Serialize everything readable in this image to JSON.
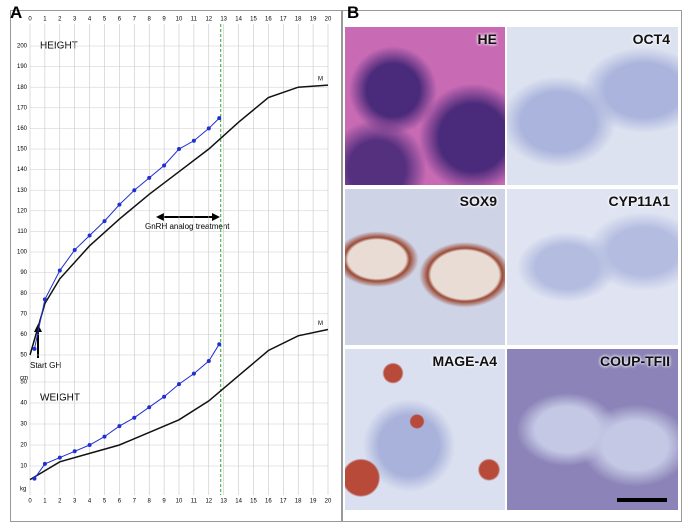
{
  "panel_a": {
    "letter": "A",
    "chart_data": {
      "type": "line",
      "height_label": "HEIGHT",
      "weight_label": "WEIGHT",
      "treatment_label": "GnRH analog treatment",
      "start_label": "Start GH",
      "y_unit": "cm",
      "y2_unit": "kg",
      "xlim": [
        0,
        20
      ],
      "xticks": [
        0,
        1,
        2,
        3,
        4,
        5,
        6,
        7,
        8,
        9,
        10,
        11,
        12,
        13,
        14,
        15,
        16,
        17,
        18,
        19,
        20
      ],
      "ylim": [
        50,
        200
      ],
      "yticks": [
        50,
        60,
        70,
        80,
        90,
        100,
        110,
        120,
        130,
        140,
        150,
        160,
        170,
        180,
        190,
        200
      ],
      "y2lim": [
        0,
        80
      ],
      "y2ticks": [
        10,
        20,
        30,
        40,
        50
      ],
      "vline_x": 12.8,
      "vline_color": "#2eaa2e",
      "grid": true,
      "series": [
        {
          "name": "M",
          "color": "#111111",
          "x": [
            0,
            1,
            2,
            4,
            6,
            8,
            10,
            12,
            14,
            16,
            18,
            20
          ],
          "values": [
            50,
            75,
            87,
            103,
            116,
            128,
            139,
            150,
            163,
            175,
            180,
            181
          ]
        },
        {
          "name": "M",
          "color": "#111111",
          "axis": "y2",
          "x": [
            0,
            2,
            4,
            6,
            8,
            10,
            12,
            14,
            16,
            18,
            20
          ],
          "values": [
            3.5,
            12,
            16,
            20,
            26,
            32,
            41,
            53,
            65,
            72,
            75
          ]
        },
        {
          "name": "HEIGHT",
          "color": "#1f2fd0",
          "x": [
            0.3,
            1,
            2,
            3,
            4,
            5,
            6,
            7,
            8,
            9,
            10,
            11,
            12,
            12.7
          ],
          "values": [
            53,
            77,
            91,
            101,
            108,
            115,
            123,
            130,
            136,
            142,
            150,
            154,
            160,
            165
          ]
        },
        {
          "name": "WEIGHT",
          "color": "#1f2fd0",
          "axis": "y2",
          "x": [
            0.3,
            1,
            2,
            3,
            4,
            5,
            6,
            7,
            8,
            9,
            10,
            11,
            12,
            12.7
          ],
          "values": [
            4,
            11,
            14,
            17,
            20,
            24,
            29,
            33,
            38,
            43,
            49,
            54,
            60,
            68
          ]
        }
      ]
    }
  },
  "panel_b": {
    "letter": "B",
    "tiles": [
      {
        "label": "HE"
      },
      {
        "label": "OCT4"
      },
      {
        "label": "SOX9"
      },
      {
        "label": "CYP11A1"
      },
      {
        "label": "MAGE-A4"
      },
      {
        "label": "COUP-TFII"
      }
    ]
  }
}
